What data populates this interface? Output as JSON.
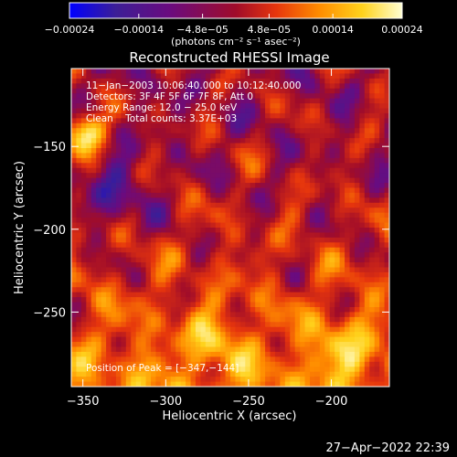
{
  "chart_data": {
    "type": "heatmap",
    "title": "Reconstructed RHESSI Image",
    "xlabel": "Heliocentric X (arcsec)",
    "ylabel": "Heliocentric Y (arcsec)",
    "xlim": [
      -357,
      -165
    ],
    "ylim": [
      -295,
      -103
    ],
    "x_ticks": [
      {
        "value": -350,
        "label": "−350"
      },
      {
        "value": -300,
        "label": "−300"
      },
      {
        "value": -250,
        "label": "−250"
      },
      {
        "value": -200,
        "label": "−200"
      }
    ],
    "y_ticks": [
      {
        "value": -150,
        "label": "−150"
      },
      {
        "value": -200,
        "label": "−200"
      },
      {
        "value": -250,
        "label": "−250"
      }
    ],
    "colorbar": {
      "range": [
        -0.00024,
        0.00024
      ],
      "tick_labels": [
        {
          "value": -0.00024,
          "label": "−0.00024"
        },
        {
          "value": -0.00014,
          "label": "−0.00014"
        },
        {
          "value": -4.8e-05,
          "label": "−4.8e−05"
        },
        {
          "value": 4.8e-05,
          "label": "4.8e−05"
        },
        {
          "value": 0.00014,
          "label": "0.00014"
        },
        {
          "value": 0.00024,
          "label": "0.00024"
        }
      ],
      "unit_label": "(photons cm⁻² s⁻¹ asec⁻²)",
      "colormap": [
        "#0000ff",
        "#3c1e96",
        "#6a0b7f",
        "#a00c2a",
        "#e6350d",
        "#ff8c00",
        "#ffd21c",
        "#ffffd2"
      ]
    },
    "annotations": [
      "11−Jan−2003 10:06:40.000 to 10:12:40.000",
      "Detectors: 3F 4F 5F 6F 7F 8F, Att 0",
      "Energy Range: 12.0 − 25.0 keV",
      "Clean    Total counts: 3.37E+03"
    ],
    "peak_label": "Position of Peak = [−347,−144]",
    "peak": [
      -347,
      -144
    ],
    "grid": false,
    "legend": "none"
  },
  "timestamp": "27−Apr−2022 22:39"
}
